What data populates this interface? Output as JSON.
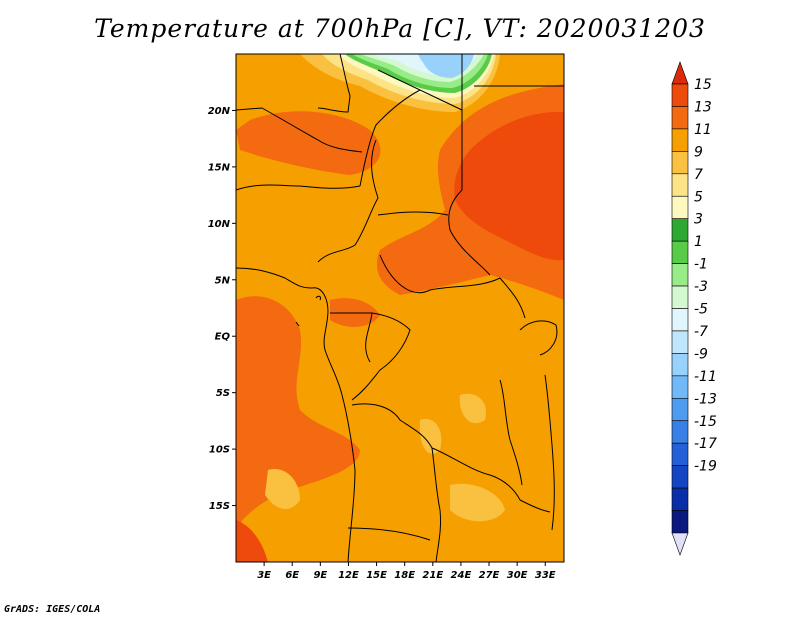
{
  "title": "Temperature at 700hPa [C], VT: 2020031203",
  "credit": "GrADS: IGES/COLA",
  "map": {
    "projection": "latlon",
    "lon_range": [
      0,
      35
    ],
    "lat_range": [
      -20,
      25
    ],
    "lat_ticks": [
      {
        "value": 20,
        "label": "20N"
      },
      {
        "value": 15,
        "label": "15N"
      },
      {
        "value": 10,
        "label": "10N"
      },
      {
        "value": 5,
        "label": "5N"
      },
      {
        "value": 0,
        "label": "EQ"
      },
      {
        "value": -5,
        "label": "5S"
      },
      {
        "value": -10,
        "label": "10S"
      },
      {
        "value": -15,
        "label": "15S"
      }
    ],
    "lon_ticks": [
      {
        "value": 3,
        "label": "3E"
      },
      {
        "value": 6,
        "label": "6E"
      },
      {
        "value": 9,
        "label": "9E"
      },
      {
        "value": 12,
        "label": "12E"
      },
      {
        "value": 15,
        "label": "15E"
      },
      {
        "value": 18,
        "label": "18E"
      },
      {
        "value": 21,
        "label": "21E"
      },
      {
        "value": 24,
        "label": "24E"
      },
      {
        "value": 27,
        "label": "27E"
      },
      {
        "value": 30,
        "label": "30E"
      },
      {
        "value": 33,
        "label": "33E"
      }
    ],
    "base_field_color": "#f5a000"
  },
  "colorbar": {
    "label_values": [
      "15",
      "13",
      "11",
      "9",
      "7",
      "5",
      "3",
      "1",
      "-1",
      "-3",
      "-5",
      "-7",
      "-9",
      "-11",
      "-13",
      "-15",
      "-17",
      "-19"
    ],
    "colors": [
      "#dc2a0a",
      "#ee4a0c",
      "#f46a10",
      "#f5a000",
      "#fac040",
      "#fce388",
      "#fdf8c0",
      "#2ea830",
      "#58cc48",
      "#98ec88",
      "#d4f8d0",
      "#e0f6fc",
      "#c0e6fc",
      "#98d2fc",
      "#70b8f8",
      "#4e9cf0",
      "#3880e6",
      "#2460d8",
      "#1446c4",
      "#0a2ea8",
      "#0a1880",
      "#06086a"
    ]
  }
}
